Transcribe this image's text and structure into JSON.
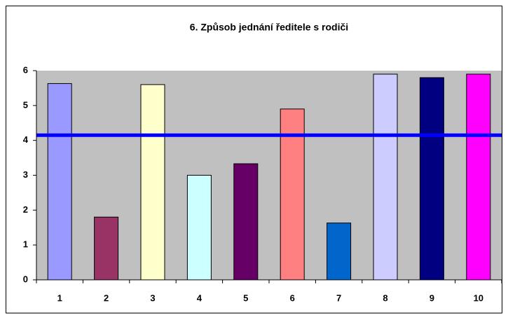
{
  "chart_data": {
    "type": "bar",
    "title": "6. Způsob jednání ředitele s rodiči",
    "categories": [
      "1",
      "2",
      "3",
      "4",
      "5",
      "6",
      "7",
      "8",
      "9",
      "10"
    ],
    "values": [
      5.63,
      1.8,
      5.6,
      3.0,
      3.33,
      4.9,
      1.63,
      5.9,
      5.8,
      5.9
    ],
    "colors": [
      "#9999ff",
      "#993366",
      "#ffffcc",
      "#ccffff",
      "#660066",
      "#ff8080",
      "#0066cc",
      "#ccccff",
      "#000080",
      "#ff00ff"
    ],
    "ylim": [
      0,
      6
    ],
    "yticks": [
      0,
      1,
      2,
      3,
      4,
      5,
      6
    ],
    "grid": false,
    "reference_line": {
      "value": 4.15,
      "color": "#0000ff"
    },
    "plot_background": "#c0c0c0"
  }
}
